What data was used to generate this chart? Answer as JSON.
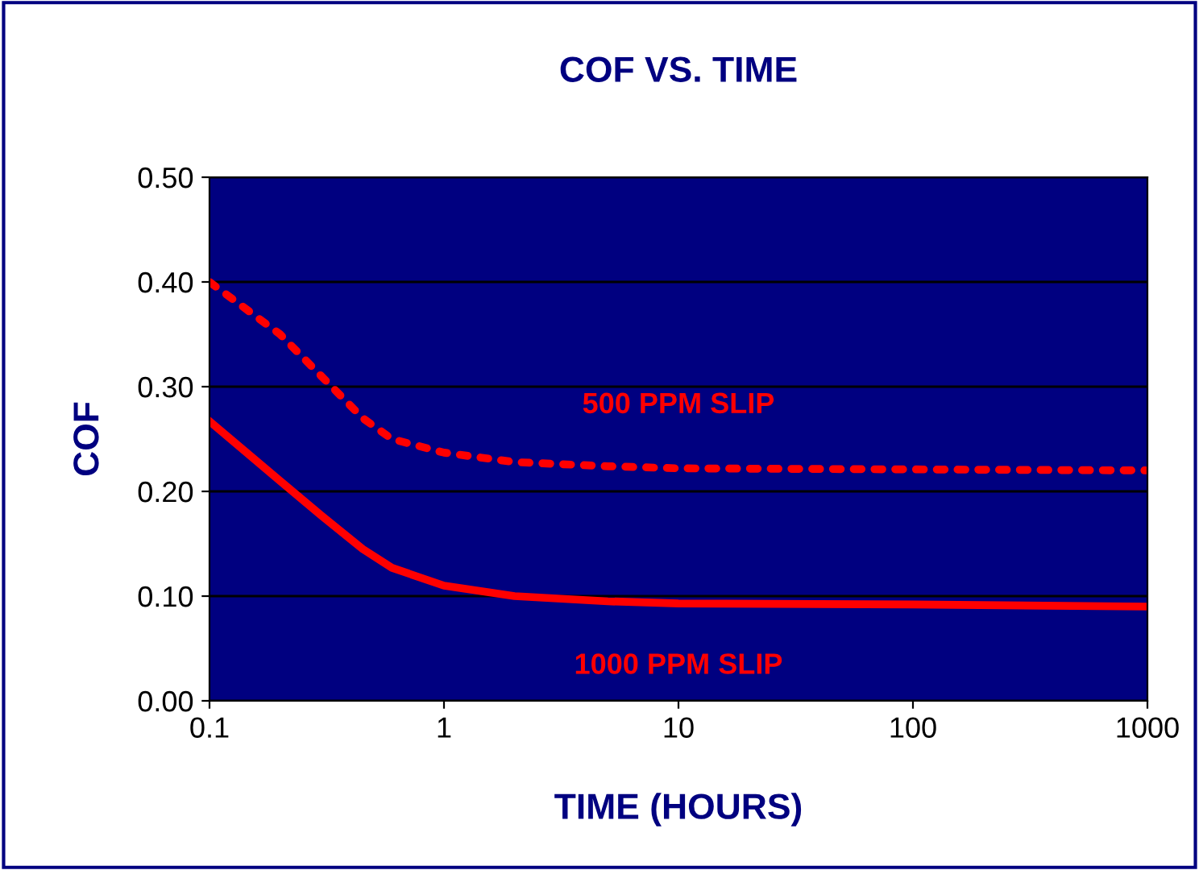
{
  "chart_data": {
    "type": "line",
    "title": "COF VS. TIME",
    "xlabel": "TIME (HOURS)",
    "ylabel": "COF",
    "log": "x",
    "grid": "y",
    "legend": false,
    "marker": "none",
    "xlim": [
      0.1,
      1000
    ],
    "xticks": [
      0.1,
      1,
      10,
      100,
      1000
    ],
    "ylim": [
      0,
      0.5
    ],
    "yticks": [
      {
        "value": 0,
        "label": "0.00"
      },
      {
        "value": 0.1,
        "label": "0.10"
      },
      {
        "value": 0.2,
        "label": "0.20"
      },
      {
        "value": 0.3,
        "label": "0.30"
      },
      {
        "value": 0.4,
        "label": "0.40"
      },
      {
        "value": 0.5,
        "label": "0.50"
      }
    ],
    "series": [
      {
        "name": "500 PPM SLIP",
        "color": "#ff0000",
        "line_style": "dotted",
        "x": [
          0.1,
          0.2,
          0.3,
          0.45,
          0.6,
          1,
          2,
          5,
          10,
          100,
          1000
        ],
        "values": [
          0.4,
          0.35,
          0.31,
          0.27,
          0.25,
          0.237,
          0.228,
          0.224,
          0.222,
          0.221,
          0.22
        ]
      },
      {
        "name": "1000 PPM SLIP",
        "color": "#ff0000",
        "line_style": "solid",
        "x": [
          0.1,
          0.2,
          0.3,
          0.45,
          0.6,
          1,
          2,
          5,
          10,
          100,
          1000
        ],
        "values": [
          0.267,
          0.21,
          0.177,
          0.145,
          0.127,
          0.11,
          0.1,
          0.095,
          0.093,
          0.092,
          0.09
        ]
      }
    ]
  }
}
